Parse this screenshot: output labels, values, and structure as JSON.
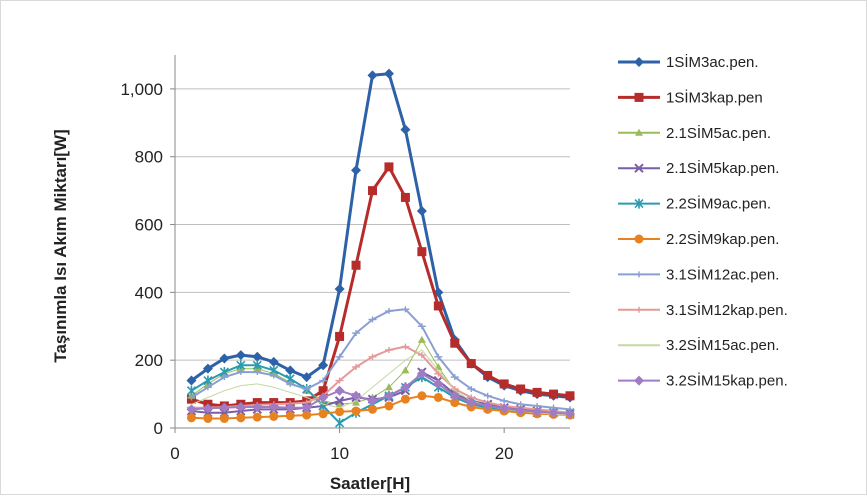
{
  "chart_data": {
    "type": "line",
    "title": "",
    "xlabel": "Saatler[H]",
    "ylabel": "Taşınımla Isı Akım Miktarı[W]",
    "xlim": [
      0,
      24
    ],
    "ylim": [
      0,
      1100
    ],
    "xticks": [
      0,
      10,
      20
    ],
    "yticks": [
      0,
      200,
      400,
      600,
      800,
      1000
    ],
    "xtick_labels": [
      "0",
      "10",
      "20"
    ],
    "ytick_labels": [
      "0",
      "200",
      "400",
      "600",
      "800",
      "1,000"
    ],
    "grid": "horizontal",
    "legend_position": "right",
    "x": [
      1,
      2,
      3,
      4,
      5,
      6,
      7,
      8,
      9,
      10,
      11,
      12,
      13,
      14,
      15,
      16,
      17,
      18,
      19,
      20,
      21,
      22,
      23,
      24
    ],
    "series": [
      {
        "name": "1SİM3ac.pen.",
        "color": "#2e62a8",
        "marker": "diamond",
        "width": 3,
        "values": [
          140,
          175,
          205,
          215,
          210,
          195,
          170,
          150,
          185,
          410,
          760,
          1040,
          1045,
          880,
          640,
          400,
          260,
          190,
          150,
          125,
          110,
          100,
          95,
          90
        ]
      },
      {
        "name": "1SİM3kap.pen",
        "color": "#b52c2a",
        "marker": "square",
        "width": 3,
        "values": [
          85,
          70,
          65,
          70,
          75,
          75,
          75,
          80,
          110,
          270,
          480,
          700,
          770,
          680,
          520,
          360,
          250,
          190,
          155,
          130,
          115,
          105,
          100,
          95
        ]
      },
      {
        "name": "2.1SİM5ac.pen.",
        "color": "#9bbb59",
        "marker": "triangle",
        "width": 1,
        "values": [
          95,
          130,
          160,
          175,
          175,
          160,
          135,
          110,
          80,
          70,
          75,
          90,
          120,
          170,
          260,
          180,
          110,
          80,
          65,
          55,
          50,
          45,
          45,
          40
        ]
      },
      {
        "name": "2.1SİM5kap.pen.",
        "color": "#7a5ea6",
        "marker": "x",
        "width": 2,
        "values": [
          50,
          45,
          45,
          50,
          55,
          55,
          55,
          60,
          65,
          80,
          90,
          85,
          90,
          110,
          165,
          140,
          100,
          80,
          70,
          60,
          55,
          50,
          45,
          45
        ]
      },
      {
        "name": "2.2SİM9ac.pen.",
        "color": "#2a9bb0",
        "marker": "star",
        "width": 2,
        "values": [
          110,
          140,
          165,
          185,
          185,
          170,
          145,
          115,
          65,
          15,
          45,
          70,
          95,
          120,
          150,
          120,
          90,
          70,
          60,
          55,
          50,
          45,
          45,
          40
        ]
      },
      {
        "name": "2.2SİM9kap.pen.",
        "color": "#e8821e",
        "marker": "circle",
        "width": 2,
        "values": [
          30,
          28,
          28,
          30,
          32,
          34,
          36,
          38,
          42,
          48,
          50,
          55,
          65,
          85,
          95,
          90,
          75,
          62,
          55,
          50,
          45,
          42,
          40,
          38
        ]
      },
      {
        "name": "3.1SİM12ac.pen.",
        "color": "#8a9fd1",
        "marker": "dash",
        "width": 2,
        "values": [
          90,
          120,
          150,
          165,
          165,
          155,
          130,
          115,
          140,
          210,
          280,
          320,
          345,
          350,
          300,
          210,
          150,
          115,
          95,
          80,
          70,
          65,
          60,
          55
        ]
      },
      {
        "name": "3.1SİM12kap.pen.",
        "color": "#e39a98",
        "marker": "dash",
        "width": 2,
        "values": [
          60,
          60,
          62,
          65,
          68,
          70,
          72,
          75,
          95,
          140,
          180,
          210,
          230,
          240,
          215,
          160,
          115,
          90,
          75,
          65,
          60,
          55,
          50,
          45
        ]
      },
      {
        "name": "3.2SİM15ac.pen.",
        "color": "#c6d8a0",
        "marker": "none",
        "width": 1,
        "values": [
          70,
          90,
          110,
          125,
          130,
          120,
          105,
          90,
          70,
          60,
          80,
          120,
          160,
          200,
          230,
          170,
          110,
          80,
          65,
          55,
          50,
          45,
          40,
          38
        ]
      },
      {
        "name": "3.2SİM15kap.pen.",
        "color": "#a07cc4",
        "marker": "diamond",
        "width": 2,
        "values": [
          55,
          58,
          60,
          62,
          62,
          62,
          60,
          60,
          90,
          110,
          95,
          80,
          95,
          120,
          160,
          130,
          95,
          75,
          65,
          58,
          52,
          48,
          45,
          42
        ]
      }
    ]
  }
}
